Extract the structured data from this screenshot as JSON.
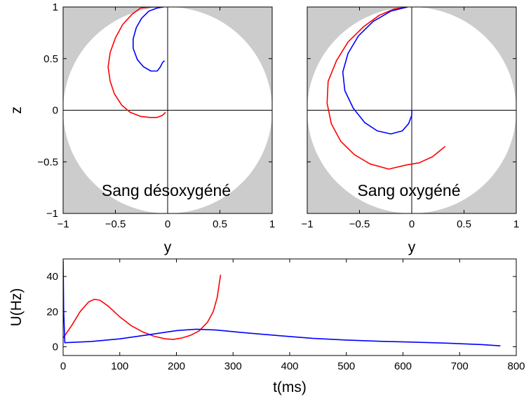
{
  "chart_data": [
    {
      "type": "line",
      "title": "Sang désoxygéné",
      "xlabel": "y",
      "ylabel": "z",
      "xlim": [
        -1,
        1
      ],
      "ylim": [
        -1,
        1
      ],
      "xticks": [
        "−1",
        "−0.5",
        "0",
        "0.5",
        "1"
      ],
      "yticks": [
        "−1",
        "−0.5",
        "0",
        "0.5",
        "1"
      ],
      "background": "unit-circle",
      "series": [
        {
          "color": "#ff0000",
          "points": [
            [
              -0.02,
              -0.02
            ],
            [
              -0.05,
              -0.05
            ],
            [
              -0.1,
              -0.07
            ],
            [
              -0.17,
              -0.07
            ],
            [
              -0.26,
              -0.06
            ],
            [
              -0.36,
              -0.02
            ],
            [
              -0.44,
              0.05
            ],
            [
              -0.51,
              0.16
            ],
            [
              -0.55,
              0.28
            ],
            [
              -0.57,
              0.42
            ],
            [
              -0.55,
              0.56
            ],
            [
              -0.5,
              0.7
            ],
            [
              -0.43,
              0.83
            ],
            [
              -0.34,
              0.93
            ],
            [
              -0.26,
              0.99
            ],
            [
              -0.15,
              1.0
            ],
            [
              -0.04,
              1.0
            ]
          ]
        },
        {
          "color": "#0000ff",
          "points": [
            [
              -0.04,
              1.0
            ],
            [
              -0.1,
              0.99
            ],
            [
              -0.18,
              0.96
            ],
            [
              -0.25,
              0.89
            ],
            [
              -0.3,
              0.8
            ],
            [
              -0.33,
              0.69
            ],
            [
              -0.33,
              0.6
            ],
            [
              -0.29,
              0.49
            ],
            [
              -0.23,
              0.42
            ],
            [
              -0.16,
              0.38
            ],
            [
              -0.1,
              0.38
            ],
            [
              -0.07,
              0.42
            ],
            [
              -0.05,
              0.46
            ],
            [
              -0.03,
              0.48
            ]
          ]
        }
      ]
    },
    {
      "type": "line",
      "title": "Sang oxygéné",
      "xlabel": "y",
      "ylabel": "",
      "xlim": [
        -1,
        1
      ],
      "ylim": [
        -1,
        1
      ],
      "xticks": [
        "−1",
        "−0.5",
        "0",
        "0.5",
        "1"
      ],
      "yticks": [],
      "background": "unit-circle",
      "series": [
        {
          "color": "#ff0000",
          "points": [
            [
              -0.04,
              1.0
            ],
            [
              -0.17,
              0.98
            ],
            [
              -0.31,
              0.92
            ],
            [
              -0.46,
              0.81
            ],
            [
              -0.61,
              0.66
            ],
            [
              -0.72,
              0.48
            ],
            [
              -0.8,
              0.28
            ],
            [
              -0.81,
              0.07
            ],
            [
              -0.77,
              -0.13
            ],
            [
              -0.68,
              -0.3
            ],
            [
              -0.55,
              -0.43
            ],
            [
              -0.4,
              -0.52
            ],
            [
              -0.22,
              -0.57
            ],
            [
              -0.05,
              -0.53
            ],
            [
              0.07,
              -0.51
            ],
            [
              0.2,
              -0.45
            ],
            [
              0.32,
              -0.35
            ]
          ]
        },
        {
          "color": "#0000ff",
          "points": [
            [
              -0.04,
              1.0
            ],
            [
              -0.2,
              0.96
            ],
            [
              -0.37,
              0.86
            ],
            [
              -0.51,
              0.72
            ],
            [
              -0.61,
              0.55
            ],
            [
              -0.66,
              0.37
            ],
            [
              -0.64,
              0.19
            ],
            [
              -0.56,
              0.02
            ],
            [
              -0.45,
              -0.12
            ],
            [
              -0.33,
              -0.2
            ],
            [
              -0.2,
              -0.23
            ],
            [
              -0.09,
              -0.2
            ],
            [
              -0.03,
              -0.13
            ],
            [
              0.0,
              -0.05
            ],
            [
              0.0,
              0.0
            ]
          ]
        }
      ]
    },
    {
      "type": "line",
      "title": "",
      "xlabel": "t(ms)",
      "ylabel": "U(Hz)",
      "xlim": [
        0,
        800
      ],
      "ylim": [
        -5,
        50
      ],
      "xticks": [
        "0",
        "100",
        "200",
        "300",
        "400",
        "500",
        "600",
        "700",
        "800"
      ],
      "yticks": [
        "0",
        "20",
        "40"
      ],
      "series": [
        {
          "color": "#ff0000",
          "points": [
            [
              0,
              5
            ],
            [
              15,
              12
            ],
            [
              30,
              20
            ],
            [
              45,
              25.5
            ],
            [
              55,
              27
            ],
            [
              65,
              26.5
            ],
            [
              80,
              23
            ],
            [
              100,
              17
            ],
            [
              120,
              12
            ],
            [
              140,
              8.5
            ],
            [
              160,
              6
            ],
            [
              180,
              4.5
            ],
            [
              195,
              4.2
            ],
            [
              210,
              5
            ],
            [
              225,
              6.5
            ],
            [
              240,
              9
            ],
            [
              255,
              14
            ],
            [
              265,
              20
            ],
            [
              272,
              28
            ],
            [
              278,
              41
            ]
          ]
        },
        {
          "color": "#0000ff",
          "points": [
            [
              0,
              49
            ],
            [
              1,
              20
            ],
            [
              3,
              2.3
            ],
            [
              50,
              3
            ],
            [
              100,
              4.5
            ],
            [
              150,
              6.8
            ],
            [
              200,
              9.2
            ],
            [
              235,
              10
            ],
            [
              270,
              9.5
            ],
            [
              320,
              8
            ],
            [
              380,
              6.3
            ],
            [
              440,
              4.8
            ],
            [
              500,
              3.8
            ],
            [
              560,
              3.1
            ],
            [
              620,
              2.6
            ],
            [
              680,
              2
            ],
            [
              740,
              1.2
            ],
            [
              772,
              0.5
            ]
          ]
        }
      ]
    }
  ]
}
